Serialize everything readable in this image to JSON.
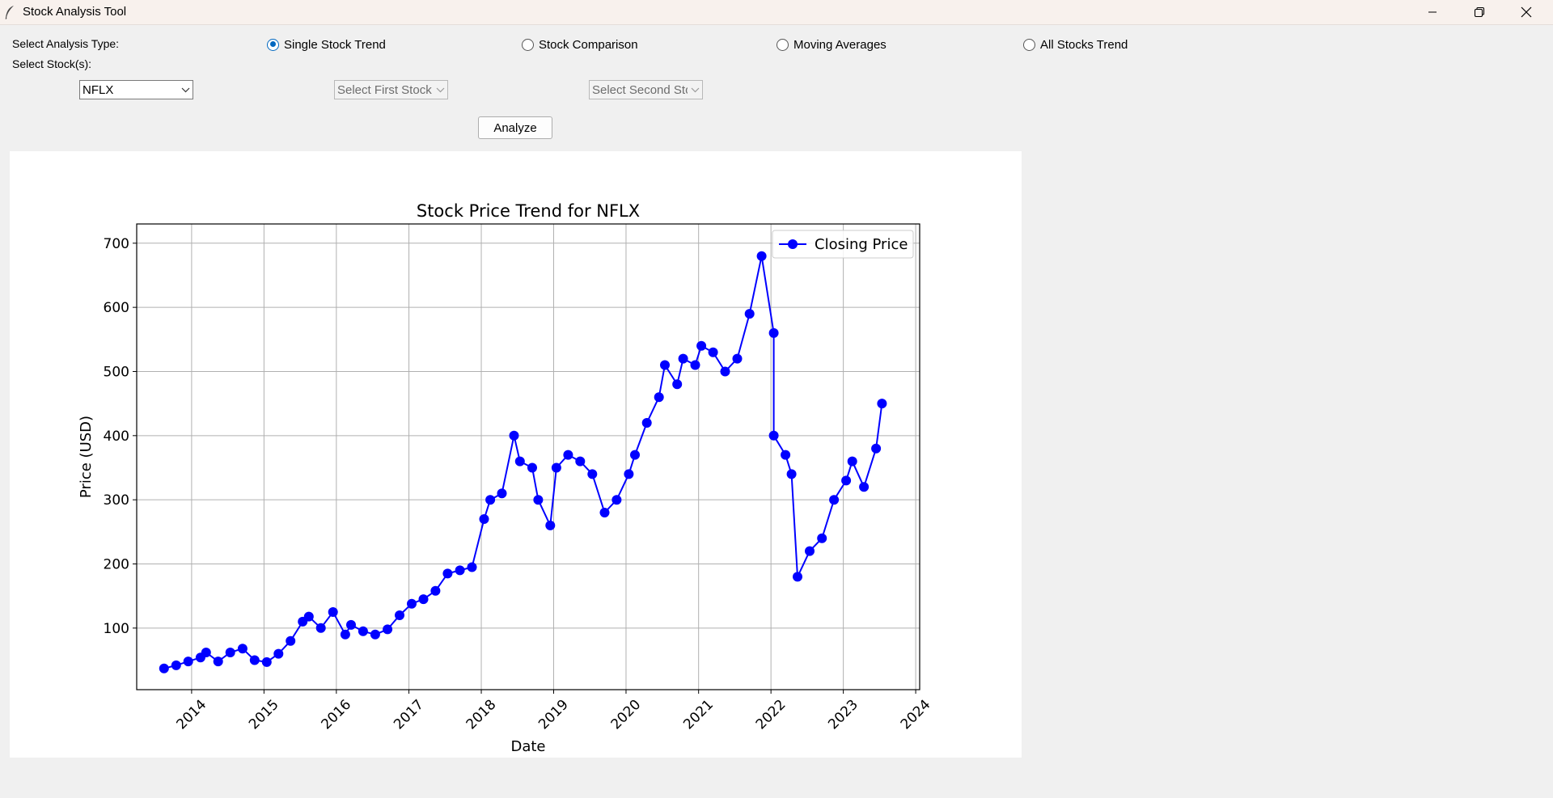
{
  "window": {
    "title": "Stock Analysis Tool",
    "controls": [
      "minimize-icon",
      "restore-icon",
      "close-icon"
    ]
  },
  "controls": {
    "analysis_type_label": "Select Analysis Type:",
    "stocks_label": "Select Stock(s):",
    "radios": [
      {
        "label": "Single Stock Trend",
        "checked": true
      },
      {
        "label": "Stock Comparison",
        "checked": false
      },
      {
        "label": "Moving Averages",
        "checked": false
      },
      {
        "label": "All Stocks Trend",
        "checked": false
      }
    ],
    "combo_stock": {
      "value": "NFLX"
    },
    "combo_first": {
      "value": "Select First Stock"
    },
    "combo_second": {
      "value": "Select Second Stock"
    },
    "analyze_label": "Analyze"
  },
  "colors": {
    "series": "#0000ff",
    "radio_accent": "#0067c0",
    "grid": "#b0b0b0"
  },
  "chart_data": {
    "type": "line",
    "title": "Stock Price Trend for NFLX",
    "xlabel": "Date",
    "ylabel": "Price (USD)",
    "legend": {
      "entries": [
        "Closing Price"
      ],
      "placement": "top-right"
    },
    "grid": true,
    "x_type": "date",
    "xlim": [
      "2013-03-30",
      "2024-01-21"
    ],
    "ylim": [
      4,
      730
    ],
    "x_ticks": [
      "2014",
      "2015",
      "2016",
      "2017",
      "2018",
      "2019",
      "2020",
      "2021",
      "2022",
      "2023",
      "2024"
    ],
    "y_ticks": [
      100,
      200,
      300,
      400,
      500,
      600,
      700
    ],
    "series": [
      {
        "name": "Closing Price",
        "x": [
          "2013-08",
          "2013-10",
          "2013-12",
          "2014-02",
          "2014-03",
          "2014-05",
          "2014-07",
          "2014-09",
          "2014-11",
          "2015-01",
          "2015-03",
          "2015-05",
          "2015-07",
          "2015-08",
          "2015-10",
          "2015-12",
          "2016-02",
          "2016-03",
          "2016-05",
          "2016-07",
          "2016-09",
          "2016-11",
          "2017-01",
          "2017-03",
          "2017-05",
          "2017-07",
          "2017-09",
          "2017-11",
          "2018-01",
          "2018-02",
          "2018-04",
          "2018-06",
          "2018-07",
          "2018-09",
          "2018-10",
          "2018-12",
          "2019-01",
          "2019-03",
          "2019-05",
          "2019-07",
          "2019-09",
          "2019-11",
          "2020-01",
          "2020-02",
          "2020-04",
          "2020-06",
          "2020-07",
          "2020-09",
          "2020-10",
          "2020-12",
          "2021-01",
          "2021-03",
          "2021-05",
          "2021-07",
          "2021-09",
          "2021-11",
          "2022-01",
          "2022-01",
          "2022-03",
          "2022-04",
          "2022-05",
          "2022-07",
          "2022-09",
          "2022-11",
          "2023-01",
          "2023-02",
          "2023-04",
          "2023-06",
          "2023-07"
        ],
        "y": [
          37,
          42,
          48,
          54,
          62,
          48,
          62,
          68,
          50,
          47,
          60,
          80,
          110,
          118,
          100,
          125,
          90,
          105,
          95,
          90,
          98,
          120,
          138,
          145,
          158,
          185,
          190,
          195,
          270,
          300,
          310,
          400,
          360,
          350,
          300,
          260,
          350,
          370,
          360,
          340,
          280,
          300,
          340,
          370,
          420,
          460,
          510,
          480,
          520,
          510,
          540,
          530,
          500,
          520,
          590,
          680,
          560,
          400,
          370,
          340,
          180,
          220,
          240,
          300,
          330,
          360,
          320,
          380,
          450
        ]
      }
    ]
  }
}
